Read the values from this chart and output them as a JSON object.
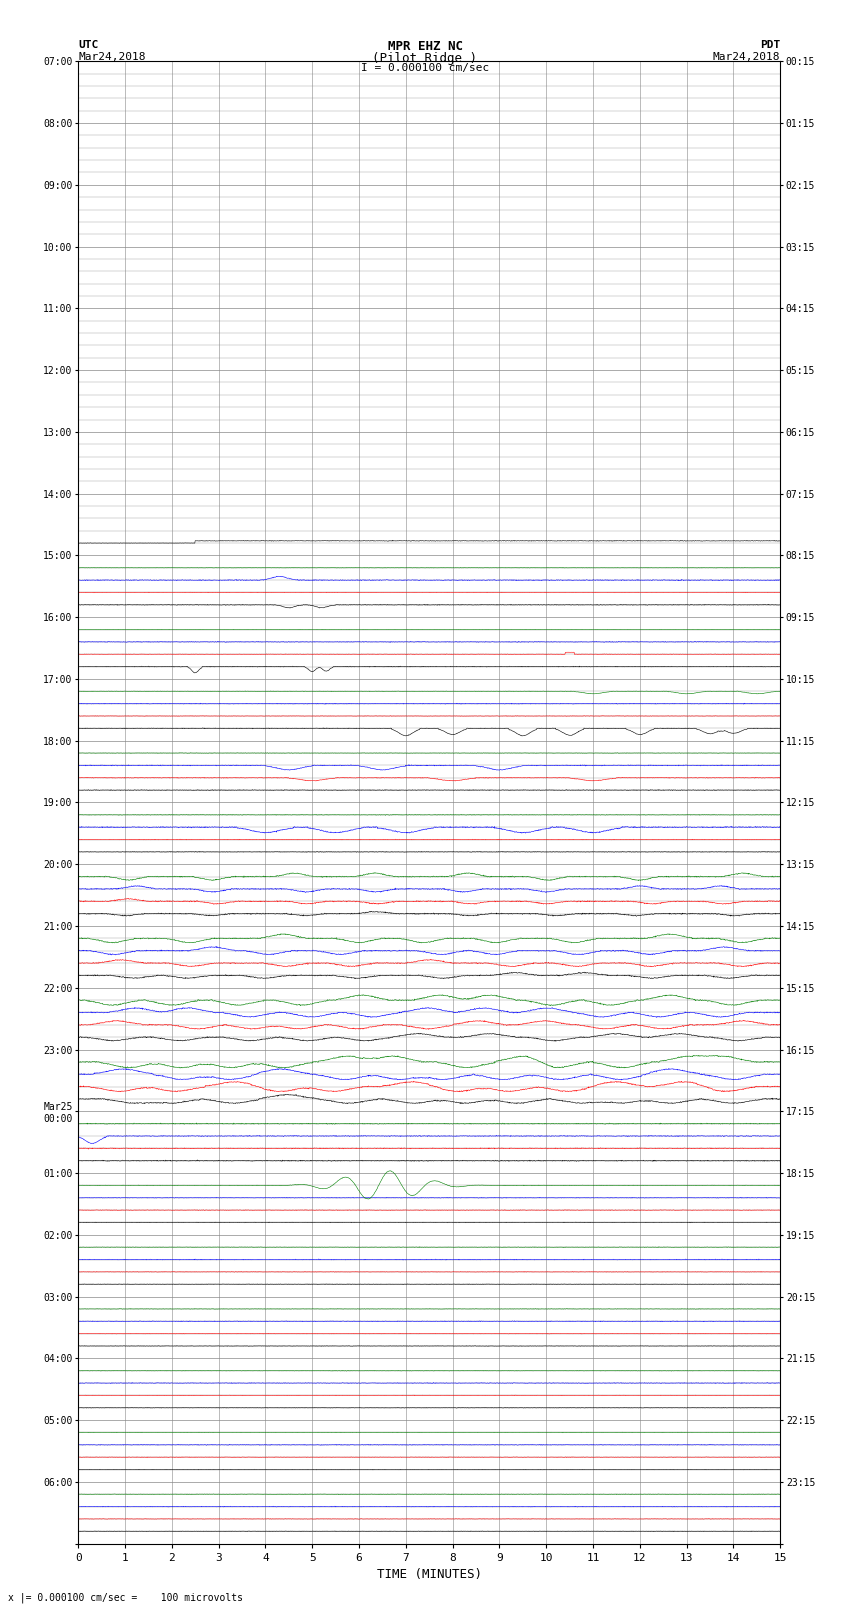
{
  "title_line1": "MPR EHZ NC",
  "title_line2": "(Pilot Ridge )",
  "scale_text": "I = 0.000100 cm/sec",
  "left_label_top": "UTC",
  "left_label_date": "Mar24,2018",
  "right_label_top": "PDT",
  "right_label_date": "Mar24,2018",
  "bottom_note": "x |= 0.000100 cm/sec =    100 microvolts",
  "xlabel": "TIME (MINUTES)",
  "left_times_utc": [
    "07:00",
    "08:00",
    "09:00",
    "10:00",
    "11:00",
    "12:00",
    "13:00",
    "14:00",
    "15:00",
    "16:00",
    "17:00",
    "18:00",
    "19:00",
    "20:00",
    "21:00",
    "22:00",
    "23:00",
    "Mar25\n00:00",
    "01:00",
    "02:00",
    "03:00",
    "04:00",
    "05:00",
    "06:00"
  ],
  "right_times_pdt": [
    "00:15",
    "01:15",
    "02:15",
    "03:15",
    "04:15",
    "05:15",
    "06:15",
    "07:15",
    "08:15",
    "09:15",
    "10:15",
    "11:15",
    "12:15",
    "13:15",
    "14:15",
    "15:15",
    "16:15",
    "17:15",
    "18:15",
    "19:15",
    "20:15",
    "21:15",
    "22:15",
    "23:15"
  ],
  "n_rows": 24,
  "n_minutes": 15,
  "bg_color": "#ffffff",
  "grid_color": "#888888",
  "trace_colors": [
    "#000000",
    "#ff0000",
    "#0000ff",
    "#008000"
  ],
  "sub_lines_per_row": 5,
  "n_traces": 4
}
